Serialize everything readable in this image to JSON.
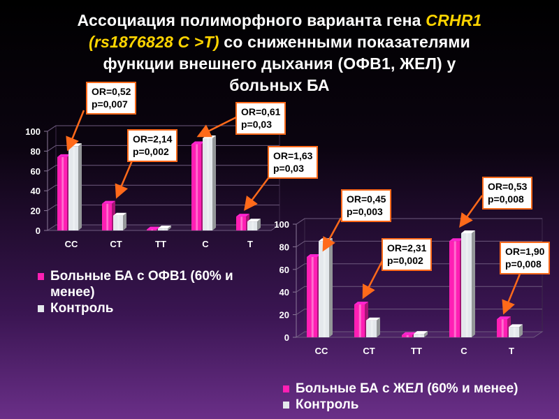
{
  "title": {
    "line1": "Ассоциация полиморфного варианта гена",
    "gene": "CRHR1",
    "snp": "(rs1876828 C >T)",
    "line2_rest": "со сниженными показателями",
    "line3": "функции внешнего дыхания (ОФВ1, ЖЕЛ)  у",
    "line4": "больных БА"
  },
  "colors": {
    "patients": "#ff1fb4",
    "control": "#e4e8ec",
    "callout_border": "#ff6a1a",
    "arrow": "#ff6a1a"
  },
  "chart_data": [
    {
      "type": "bar",
      "categories": [
        "CC",
        "CT",
        "TT",
        "C",
        "T"
      ],
      "ylim": [
        0,
        100
      ],
      "yticks": [
        0,
        20,
        40,
        60,
        80,
        100
      ],
      "series": [
        {
          "name": "Больные БА с ОФВ1 (60% и менее)",
          "values": [
            74,
            27,
            1,
            87,
            14
          ]
        },
        {
          "name": "Контроль",
          "values": [
            85,
            15,
            2,
            93,
            9
          ]
        }
      ],
      "annotations": [
        {
          "text1": "OR=0,52",
          "text2": "p=0,007",
          "category": "CC"
        },
        {
          "text1": "OR=2,14",
          "text2": "p=0,002",
          "category": "CT"
        },
        {
          "text1": "OR=0,61",
          "text2": "p=0,03",
          "category": "C"
        },
        {
          "text1": "OR=1,63",
          "text2": "p=0,03",
          "category": "T"
        }
      ],
      "legend": {
        "line1": "Больные БА с ОФВ1 (60% и",
        "line2": "менее)",
        "control": "Контроль"
      }
    },
    {
      "type": "bar",
      "categories": [
        "CC",
        "CT",
        "TT",
        "C",
        "T"
      ],
      "ylim": [
        0,
        100
      ],
      "yticks": [
        0,
        20,
        40,
        60,
        80,
        100
      ],
      "series": [
        {
          "name": "Больные БА с ЖЕЛ (60% и менее)",
          "values": [
            71,
            29,
            2,
            85,
            16
          ]
        },
        {
          "name": "Контроль",
          "values": [
            85,
            15,
            3,
            92,
            9
          ]
        }
      ],
      "annotations": [
        {
          "text1": "OR=0,45",
          "text2": "p=0,003",
          "category": "CC"
        },
        {
          "text1": "OR=2,31",
          "text2": "p=0,002",
          "category": "CT"
        },
        {
          "text1": "OR=0,53",
          "text2": "p=0,008",
          "category": "C"
        },
        {
          "text1": "OR=1,90",
          "text2": "p=0,008",
          "category": "T"
        }
      ],
      "legend": {
        "line1": "Больные БА с ЖЕЛ (60% и менее)",
        "control": "Контроль"
      }
    }
  ]
}
